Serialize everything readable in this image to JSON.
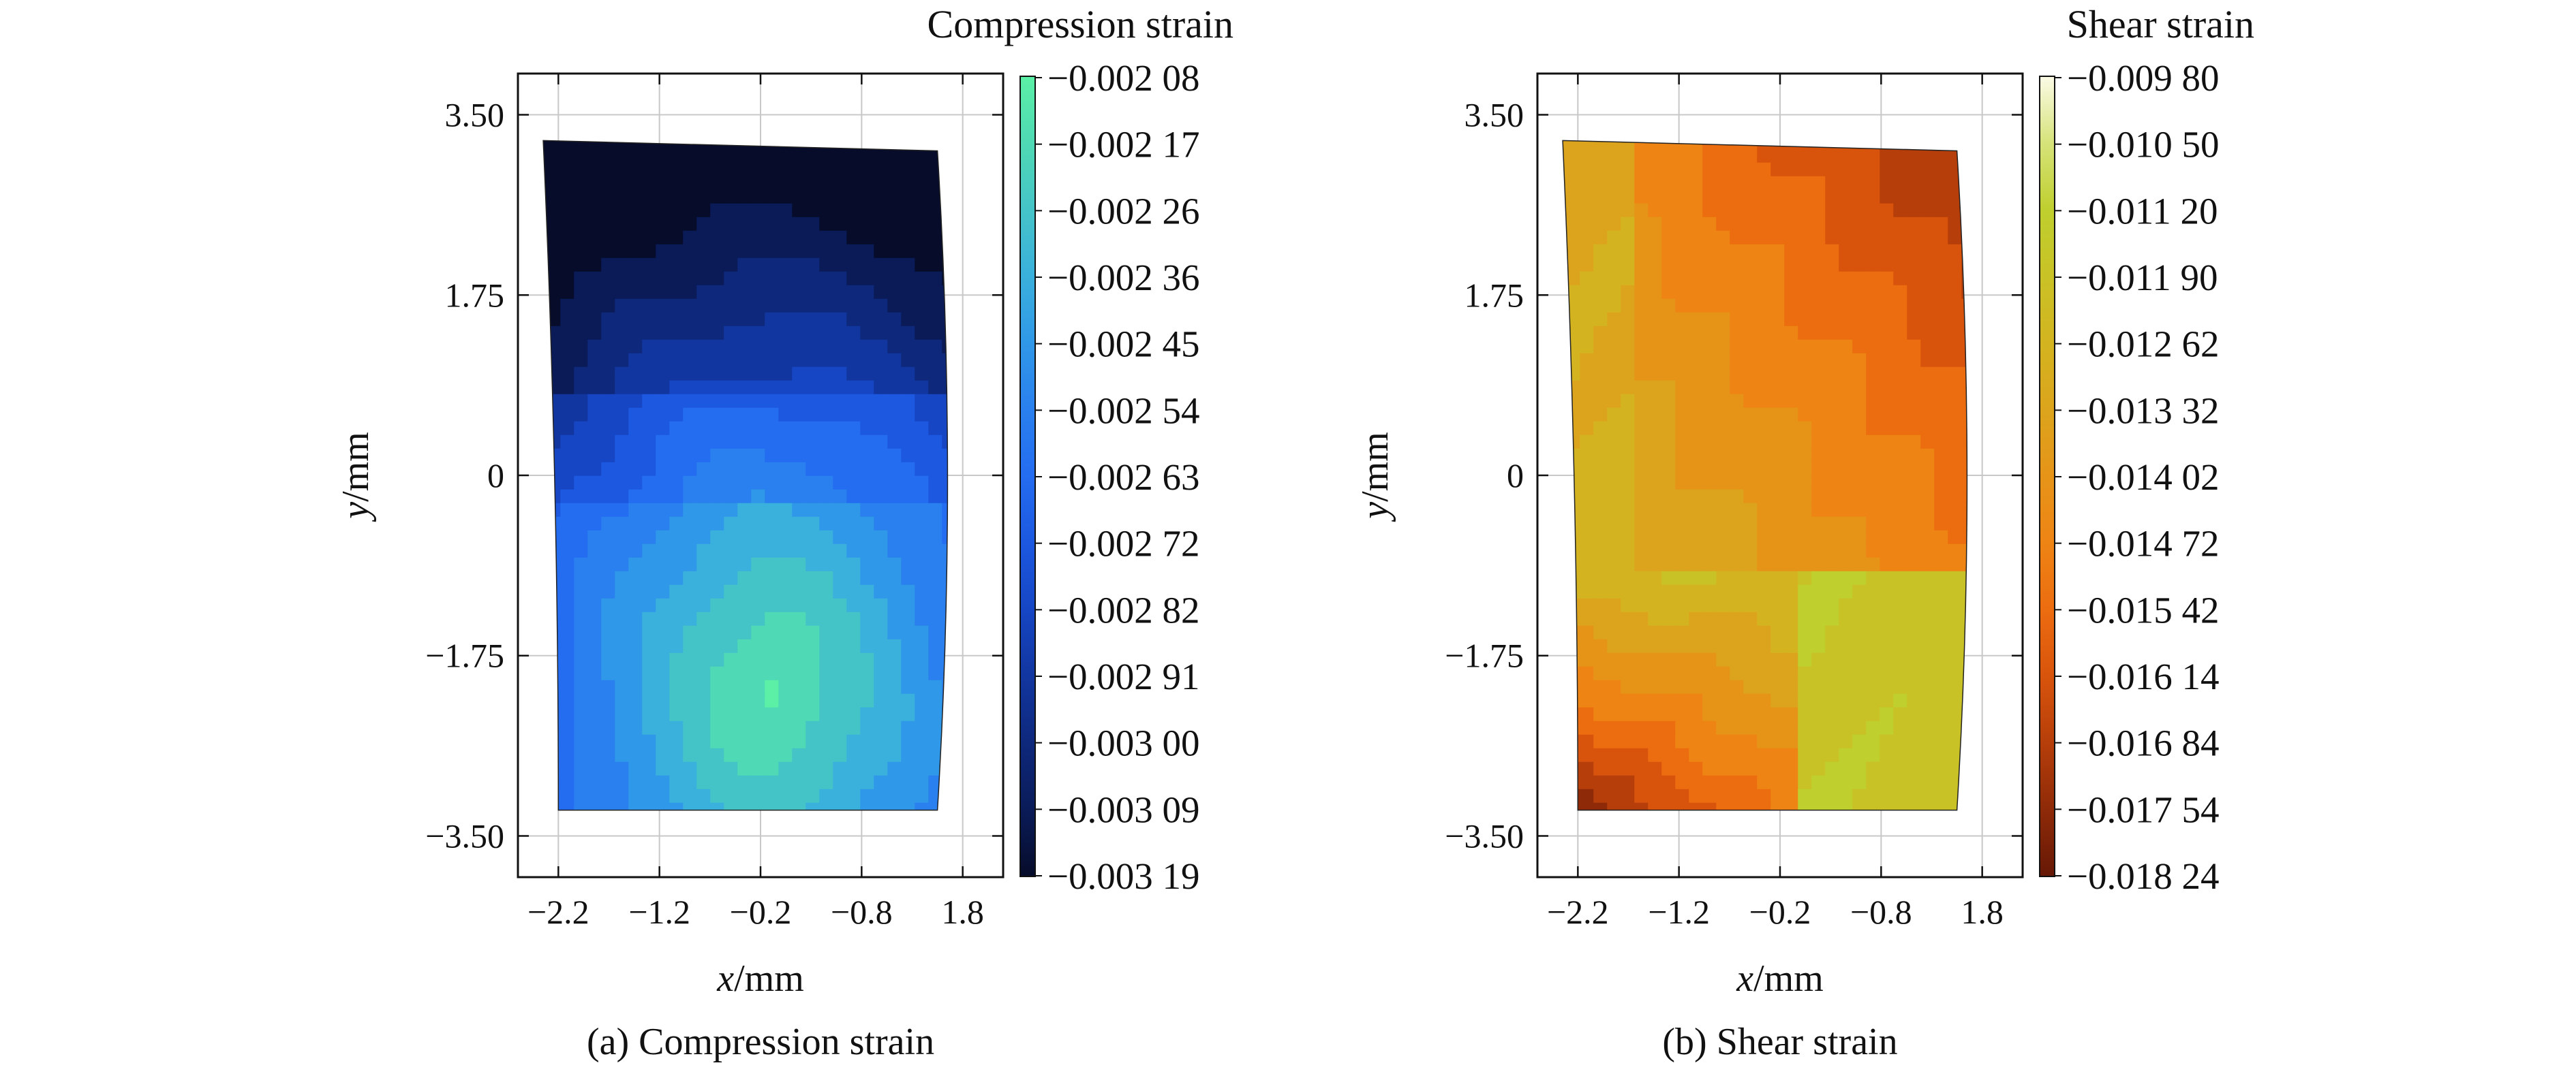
{
  "chart_data": [
    {
      "type": "heatmap",
      "caption": "(a) Compression strain",
      "colorbar_title": "Compression strain",
      "xlabel_italic": "x",
      "xlabel_unit": "/mm",
      "ylabel_italic": "y",
      "ylabel_unit": "/mm",
      "xticks": [
        "−2.2",
        "−1.2",
        "−0.2",
        "−0.8",
        "1.8"
      ],
      "yticks": [
        "3.50",
        "1.75",
        "0",
        "−1.75",
        "−3.50"
      ],
      "xlim": [
        -2.6,
        2.2
      ],
      "ylim": [
        -3.9,
        3.9
      ],
      "grid": true,
      "colorbar_ticks": [
        "−0.002 08",
        "−0.002 17",
        "−0.002 26",
        "−0.002 36",
        "−0.002 45",
        "−0.002 54",
        "−0.002 63",
        "−0.002 72",
        "−0.002 82",
        "−0.002 91",
        "−0.003 00",
        "−0.003 09",
        "−0.003 19"
      ],
      "colormap": [
        "#5bf0a6",
        "#4fd9b4",
        "#45c4c8",
        "#3ab0dc",
        "#3098e8",
        "#2a80ee",
        "#246cf0",
        "#1c58e0",
        "#1646c4",
        "#1236a0",
        "#0e287c",
        "#0a1b58",
        "#060c2a"
      ],
      "colormap_low_value": "−0.002 08",
      "colormap_high_value": "−0.003 19",
      "field": {
        "pattern": "compression-elliptic",
        "center_x": -0.1,
        "center_y": -2.1,
        "peak_color_index": 0,
        "corner_color_index": 12,
        "band_step_y": 0.82
      }
    },
    {
      "type": "heatmap",
      "caption": "(b) Shear strain",
      "colorbar_title": "Shear strain",
      "xlabel_italic": "x",
      "xlabel_unit": "/mm",
      "ylabel_italic": "y",
      "ylabel_unit": "/mm",
      "xticks": [
        "−2.2",
        "−1.2",
        "−0.2",
        "−0.8",
        "1.8"
      ],
      "yticks": [
        "3.50",
        "1.75",
        "0",
        "−1.75",
        "−3.50"
      ],
      "xlim": [
        -2.6,
        2.2
      ],
      "ylim": [
        -3.9,
        3.9
      ],
      "grid": true,
      "colorbar_ticks": [
        "−0.009 80",
        "−0.010 50",
        "−0.011 20",
        "−0.011 90",
        "−0.012 62",
        "−0.013 32",
        "−0.014 02",
        "−0.014 72",
        "−0.015 42",
        "−0.016 14",
        "−0.016 84",
        "−0.017 54",
        "−0.018 24"
      ],
      "colormap": [
        "#fbfbe6",
        "#d6e37a",
        "#bfcf2e",
        "#c9c226",
        "#d3b420",
        "#dca41c",
        "#e69418",
        "#ee8414",
        "#ec6c10",
        "#d8540c",
        "#b63e0a",
        "#8e2a08",
        "#661806"
      ],
      "colormap_low_value": "−0.009 80",
      "colormap_high_value": "−0.018 24",
      "field": {
        "pattern": "shear-diagonal",
        "top_right_color_index": 12,
        "bottom_right_color_index": 2,
        "bottom_left_color_index": 9,
        "mid_color_index": 4
      }
    }
  ]
}
